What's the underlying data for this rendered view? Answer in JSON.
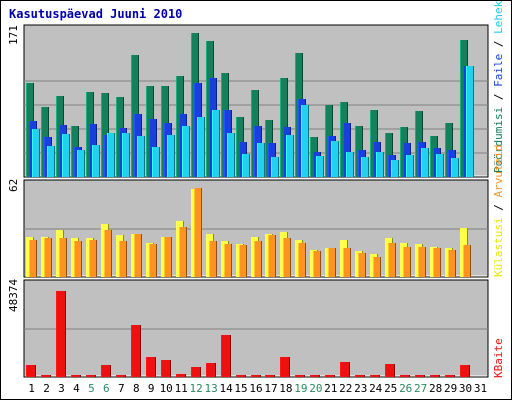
{
  "title": "Kasutuspäevad Juuni 2010",
  "colors": {
    "background": "#ffffff",
    "panel": "#c0c0c0",
    "title": "#0000aa",
    "hits": "#15805c",
    "files": "#1a3fe0",
    "pages": "#22d0f0",
    "visits": "#ffff44",
    "sites": "#ff9322",
    "kbytes": "#ee1111",
    "weekend_label": "#2a8a60"
  },
  "right_labels": {
    "top": [
      {
        "text": "Pöördumisi",
        "color": "#15805c"
      },
      {
        "text": " / ",
        "color": "#000000"
      },
      {
        "text": "Faile",
        "color": "#1a3fe0"
      },
      {
        "text": " / ",
        "color": "#000000"
      },
      {
        "text": "Lehekülgi",
        "color": "#22d0f0"
      }
    ],
    "middle": [
      {
        "text": "Külastusi",
        "color": "#e8e800"
      },
      {
        "text": " / ",
        "color": "#000000"
      },
      {
        "text": "Arvuteid",
        "color": "#ff9322"
      }
    ],
    "bottom": [
      {
        "text": "KBaite",
        "color": "#ee1111"
      }
    ]
  },
  "chart_data": {
    "type": "bar",
    "x": [
      "1",
      "2",
      "3",
      "4",
      "5",
      "6",
      "7",
      "8",
      "9",
      "10",
      "11",
      "12",
      "13",
      "14",
      "15",
      "16",
      "17",
      "18",
      "19",
      "20",
      "21",
      "22",
      "23",
      "24",
      "25",
      "26",
      "27",
      "28",
      "29",
      "30",
      "31"
    ],
    "weekend_days": [
      "5",
      "6",
      "12",
      "13",
      "19",
      "20",
      "26",
      "27"
    ],
    "panels": [
      {
        "name": "top",
        "max_label": "171",
        "ymax": 171,
        "series": [
          {
            "name": "Pöördumisi",
            "values": [
              112,
              83,
              96,
              61,
              101,
              100,
              95,
              145,
              108,
              108,
              120,
              171,
              162,
              123,
              71,
              103,
              68,
              117,
              147,
              48,
              86,
              89,
              60,
              79,
              52,
              59,
              78,
              49,
              64,
              163,
              0
            ]
          },
          {
            "name": "Faile",
            "values": [
              67,
              48,
              62,
              36,
              63,
              50,
              58,
              75,
              69,
              64,
              75,
              112,
              118,
              79,
              42,
              60,
              40,
              59,
              93,
              30,
              49,
              64,
              32,
              41,
              26,
              40,
              41,
              35,
              32,
              132,
              0
            ]
          },
          {
            "name": "Lehekülgi",
            "values": [
              57,
              37,
              51,
              32,
              38,
              52,
              52,
              49,
              36,
              50,
              60,
              71,
              80,
              52,
              27,
              40,
              24,
              50,
              86,
              25,
              43,
              30,
              24,
              30,
              20,
              26,
              35,
              27,
              23,
              132,
              0
            ]
          }
        ]
      },
      {
        "name": "middle",
        "max_label": "62",
        "ymax": 62,
        "series": [
          {
            "name": "Külastusi",
            "values": [
              28,
              28,
              33,
              27,
              27,
              37,
              29,
              30,
              24,
              28,
              39,
              61,
              30,
              25,
              23,
              28,
              30,
              31,
              26,
              19,
              20,
              26,
              18,
              16,
              27,
              24,
              23,
              21,
              20,
              34,
              0
            ]
          },
          {
            "name": "Arvuteid",
            "values": [
              26,
              27,
              27,
              25,
              26,
              33,
              25,
              30,
              23,
              28,
              35,
              62,
              25,
              23,
              22,
              25,
              29,
              27,
              24,
              18,
              20,
              20,
              17,
              14,
              24,
              21,
              21,
              20,
              19,
              22,
              0
            ]
          }
        ]
      },
      {
        "name": "bottom",
        "max_label": "48374",
        "ymax": 48374,
        "series": [
          {
            "name": "KBaite",
            "values": [
              6700,
              1000,
              47000,
              1000,
              1000,
              6700,
              1000,
              28500,
              11000,
              9000,
              1500,
              5200,
              7700,
              22800,
              1000,
              1000,
              1000,
              11000,
              1000,
              1000,
              1000,
              8000,
              1000,
              1000,
              7000,
              1000,
              1000,
              1000,
              1000,
              6300,
              0
            ]
          }
        ]
      }
    ]
  }
}
